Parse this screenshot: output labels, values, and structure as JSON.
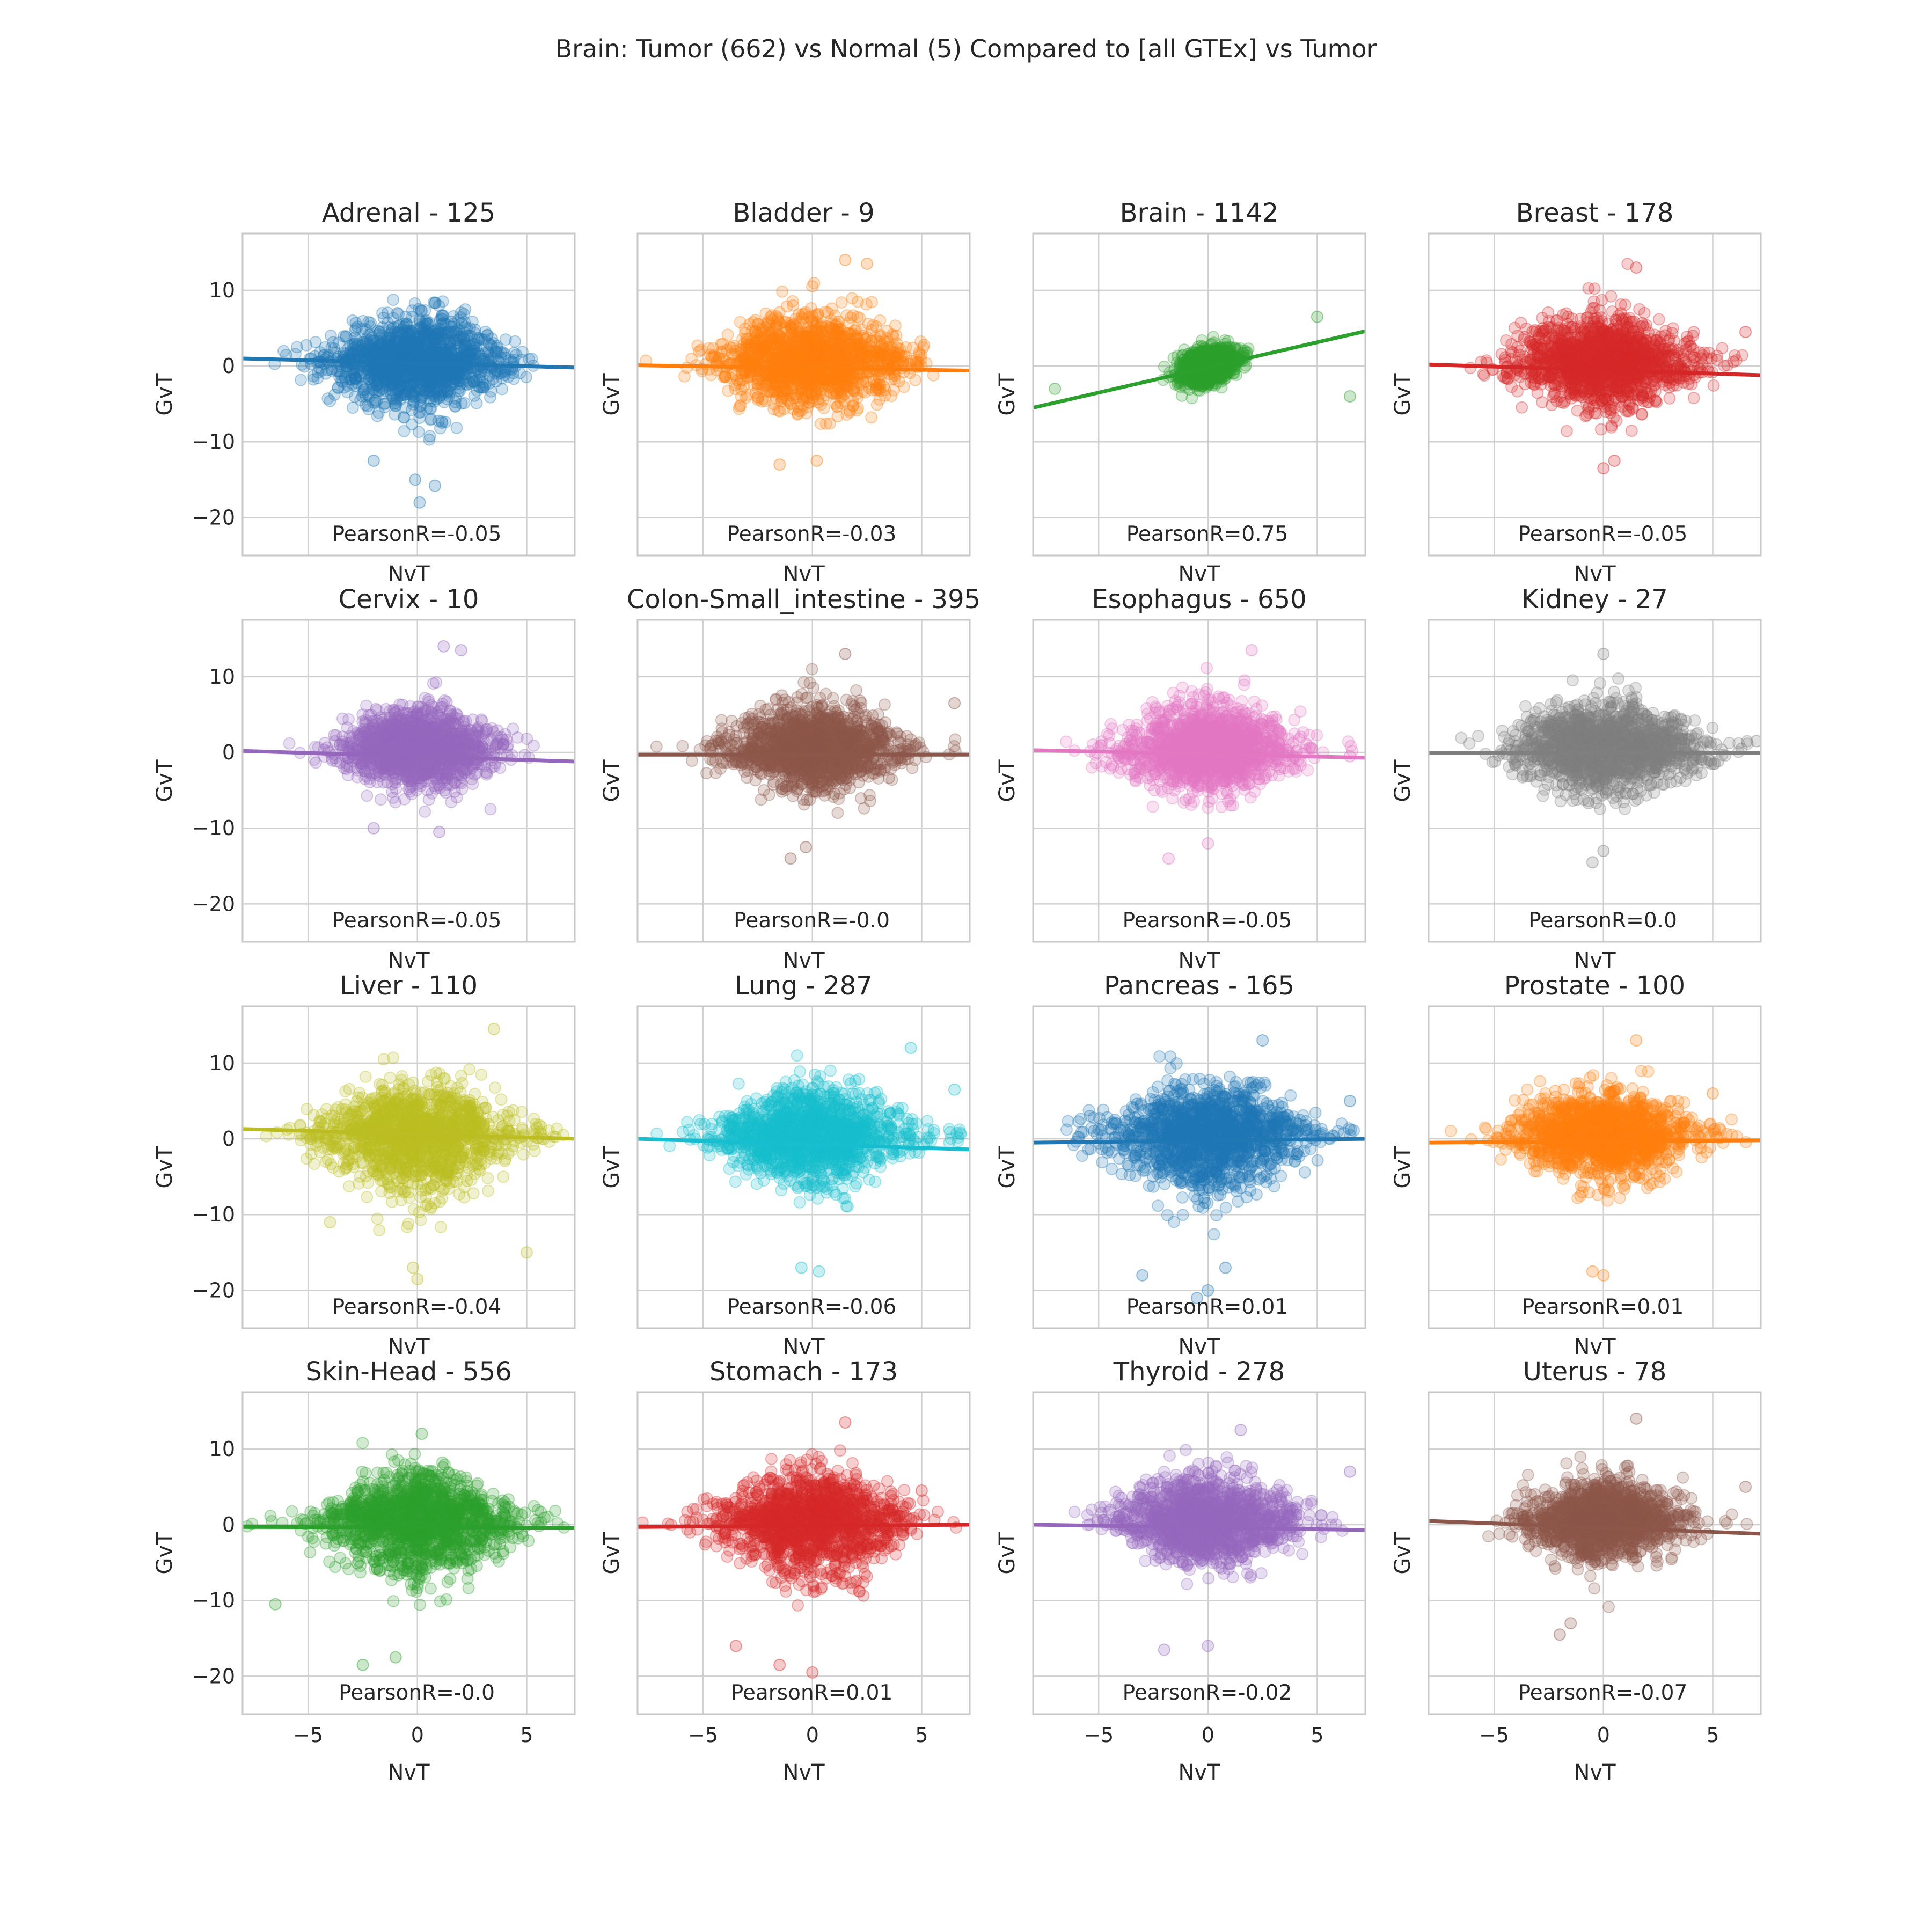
{
  "suptitle": "Brain: Tumor (662) vs Normal (5) Compared to [all GTEx] vs Tumor",
  "chart_data": {
    "type": "scatter",
    "layout": "4x4 grid of scatter plots with regression lines",
    "xlabel": "NvT",
    "ylabel": "GvT",
    "xlim": [
      -8,
      7.2
    ],
    "ylim": [
      -25,
      17.5
    ],
    "xticks": [
      -5,
      0,
      5
    ],
    "yticks": [
      10,
      0,
      -10,
      -20
    ],
    "xtick_labels": [
      "−5",
      "0",
      "5"
    ],
    "ytick_labels": [
      "10",
      "0",
      "−10",
      "−20"
    ],
    "grid": true,
    "panels": [
      {
        "title": "Adrenal - 125",
        "tissue": "Adrenal",
        "n": 125,
        "pearson": "PearsonR=-0.05",
        "r": -0.05,
        "color": "#1f77b4",
        "line": [
          [
            -8,
            1.0
          ],
          [
            7.2,
            -0.2
          ]
        ],
        "spread": 1.0,
        "skew": 0,
        "extremes": [
          [
            -0.1,
            -15
          ],
          [
            0.1,
            -18
          ],
          [
            -2,
            -12.5
          ],
          [
            0.8,
            -15.8
          ]
        ]
      },
      {
        "title": "Bladder - 9",
        "tissue": "Bladder",
        "n": 9,
        "pearson": "PearsonR=-0.03",
        "r": -0.03,
        "color": "#ff7f0e",
        "line": [
          [
            -8,
            0.1
          ],
          [
            7.2,
            -0.6
          ]
        ],
        "spread": 1.0,
        "skew": 0,
        "extremes": [
          [
            -1.5,
            -13
          ],
          [
            0.2,
            -12.5
          ],
          [
            2.5,
            13.5
          ],
          [
            1.5,
            14
          ]
        ]
      },
      {
        "title": "Brain - 1142",
        "tissue": "Brain",
        "n": 1142,
        "pearson": "PearsonR=0.75",
        "r": 0.75,
        "color": "#2ca02c",
        "line": [
          [
            -8,
            -5.5
          ],
          [
            7.2,
            4.6
          ]
        ],
        "spread": 0.3,
        "skew": 0,
        "extremes": [
          [
            6.5,
            -4
          ],
          [
            -7,
            -3
          ],
          [
            5,
            6.5
          ]
        ]
      },
      {
        "title": "Breast - 178",
        "tissue": "Breast",
        "n": 178,
        "pearson": "PearsonR=-0.05",
        "r": -0.05,
        "color": "#d62728",
        "line": [
          [
            -8,
            0.2
          ],
          [
            7.2,
            -1.2
          ]
        ],
        "spread": 1.0,
        "skew": 0,
        "extremes": [
          [
            0,
            -13.5
          ],
          [
            0.5,
            -12.5
          ],
          [
            1.5,
            13
          ],
          [
            6.5,
            4.5
          ]
        ]
      },
      {
        "title": "Cervix - 10",
        "tissue": "Cervix",
        "n": 10,
        "pearson": "PearsonR=-0.05",
        "r": -0.05,
        "color": "#9467bd",
        "line": [
          [
            -8,
            0.2
          ],
          [
            7.2,
            -1.2
          ]
        ],
        "spread": 0.85,
        "skew": 0,
        "extremes": [
          [
            1.2,
            14
          ],
          [
            2,
            13.5
          ],
          [
            1,
            -10.5
          ],
          [
            -2,
            -10
          ]
        ]
      },
      {
        "title": "Colon-Small_intestine - 395",
        "tissue": "Colon-Small_intestine",
        "n": 395,
        "pearson": "PearsonR=-0.0",
        "r": 0.0,
        "color": "#8c564b",
        "line": [
          [
            -8,
            -0.3
          ],
          [
            7.2,
            -0.3
          ]
        ],
        "spread": 0.95,
        "skew": 0,
        "extremes": [
          [
            -0.3,
            -12.5
          ],
          [
            -1,
            -14
          ],
          [
            1.5,
            13
          ],
          [
            6.5,
            6.5
          ]
        ]
      },
      {
        "title": "Esophagus - 650",
        "tissue": "Esophagus",
        "n": 650,
        "pearson": "PearsonR=-0.05",
        "r": -0.05,
        "color": "#e377c2",
        "line": [
          [
            -8,
            0.3
          ],
          [
            7.2,
            -0.7
          ]
        ],
        "spread": 0.95,
        "skew": 0,
        "extremes": [
          [
            0,
            -12
          ],
          [
            -1.8,
            -14
          ],
          [
            2,
            13.5
          ],
          [
            6.5,
            -0.5
          ]
        ]
      },
      {
        "title": "Kidney - 27",
        "tissue": "Kidney",
        "n": 27,
        "pearson": "PearsonR=0.0",
        "r": 0.0,
        "color": "#7f7f7f",
        "line": [
          [
            -8,
            -0.1
          ],
          [
            7.2,
            -0.1
          ]
        ],
        "spread": 1.0,
        "skew": 0,
        "extremes": [
          [
            -0.5,
            -14.5
          ],
          [
            0,
            -13
          ],
          [
            0,
            13
          ],
          [
            7,
            1.5
          ]
        ]
      },
      {
        "title": "Liver - 110",
        "tissue": "Liver",
        "n": 110,
        "pearson": "PearsonR=-0.04",
        "r": -0.04,
        "color": "#bcbd22",
        "line": [
          [
            -8,
            1.3
          ],
          [
            7.2,
            0.0
          ]
        ],
        "spread": 1.05,
        "skew": 1,
        "extremes": [
          [
            0,
            -18.5
          ],
          [
            -0.2,
            -17
          ],
          [
            3.5,
            14.5
          ],
          [
            5,
            -15
          ],
          [
            -4,
            -11
          ]
        ]
      },
      {
        "title": "Lung - 287",
        "tissue": "Lung",
        "n": 287,
        "pearson": "PearsonR=-0.06",
        "r": -0.06,
        "color": "#17becf",
        "line": [
          [
            -8,
            0.0
          ],
          [
            7.2,
            -1.4
          ]
        ],
        "spread": 1.0,
        "skew": 0,
        "extremes": [
          [
            0.3,
            -17.5
          ],
          [
            -0.5,
            -17
          ],
          [
            6.5,
            6.5
          ],
          [
            4.5,
            12
          ]
        ]
      },
      {
        "title": "Pancreas - 165",
        "tissue": "Pancreas",
        "n": 165,
        "pearson": "PearsonR=0.01",
        "r": 0.01,
        "color": "#1f77b4",
        "line": [
          [
            -8,
            -0.5
          ],
          [
            7.2,
            0.0
          ]
        ],
        "spread": 1.05,
        "skew": 1,
        "extremes": [
          [
            -0.5,
            -21
          ],
          [
            0,
            -20
          ],
          [
            -3,
            -18
          ],
          [
            0.8,
            -17
          ],
          [
            2.5,
            13
          ],
          [
            6.5,
            5
          ]
        ]
      },
      {
        "title": "Prostate - 100",
        "tissue": "Prostate",
        "n": 100,
        "pearson": "PearsonR=0.01",
        "r": 0.01,
        "color": "#ff7f0e",
        "line": [
          [
            -8,
            -0.5
          ],
          [
            7.2,
            -0.2
          ]
        ],
        "spread": 0.95,
        "skew": 0,
        "extremes": [
          [
            -0.5,
            -17.5
          ],
          [
            0,
            -18
          ],
          [
            1.5,
            13
          ],
          [
            5,
            6
          ]
        ]
      },
      {
        "title": "Skin-Head - 556",
        "tissue": "Skin-Head",
        "n": 556,
        "pearson": "PearsonR=-0.0",
        "r": 0.0,
        "color": "#2ca02c",
        "line": [
          [
            -8,
            -0.3
          ],
          [
            7.2,
            -0.4
          ]
        ],
        "spread": 1.0,
        "skew": 1,
        "extremes": [
          [
            -2.5,
            -18.5
          ],
          [
            -1,
            -17.5
          ],
          [
            0.2,
            12
          ],
          [
            -6.5,
            -10.5
          ]
        ]
      },
      {
        "title": "Stomach - 173",
        "tissue": "Stomach",
        "n": 173,
        "pearson": "PearsonR=0.01",
        "r": 0.01,
        "color": "#d62728",
        "line": [
          [
            -8,
            -0.3
          ],
          [
            7.2,
            0.0
          ]
        ],
        "spread": 1.0,
        "skew": 1,
        "extremes": [
          [
            0,
            -19.5
          ],
          [
            -1.5,
            -18.5
          ],
          [
            -3.5,
            -16
          ],
          [
            1.5,
            13.5
          ],
          [
            5,
            4.5
          ]
        ]
      },
      {
        "title": "Thyroid - 278",
        "tissue": "Thyroid",
        "n": 278,
        "pearson": "PearsonR=-0.02",
        "r": -0.02,
        "color": "#9467bd",
        "line": [
          [
            -8,
            0.0
          ],
          [
            7.2,
            -0.7
          ]
        ],
        "spread": 0.95,
        "skew": 0,
        "extremes": [
          [
            -2,
            -16.5
          ],
          [
            0,
            -16
          ],
          [
            1.5,
            12.5
          ],
          [
            6.5,
            7
          ]
        ]
      },
      {
        "title": "Uterus - 78",
        "tissue": "Uterus",
        "n": 78,
        "pearson": "PearsonR=-0.07",
        "r": -0.07,
        "color": "#8c564b",
        "line": [
          [
            -8,
            0.5
          ],
          [
            7.2,
            -1.2
          ]
        ],
        "spread": 0.85,
        "skew": 0,
        "extremes": [
          [
            -1.5,
            -13
          ],
          [
            -2,
            -14.5
          ],
          [
            1.5,
            14
          ],
          [
            6.5,
            5
          ]
        ]
      }
    ]
  }
}
